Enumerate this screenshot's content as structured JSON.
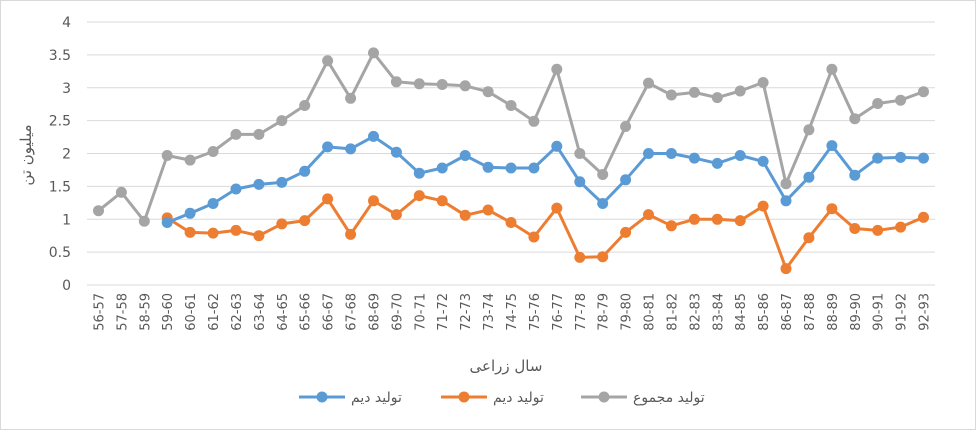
{
  "chart_data": {
    "type": "line",
    "title": "",
    "xlabel": "سال زراعی",
    "ylabel": "میلیون تن",
    "ylim": [
      0,
      4
    ],
    "yticks": [
      "0",
      "0.5",
      "1",
      "1.5",
      "2",
      "2.5",
      "3",
      "3.5",
      "4"
    ],
    "grid": true,
    "legend_position": "bottom",
    "categories": [
      "56-57",
      "57-58",
      "58-59",
      "59-60",
      "60-61",
      "61-62",
      "62-63",
      "63-64",
      "64-65",
      "65-66",
      "66-67",
      "67-68",
      "68-69",
      "69-70",
      "70-71",
      "71-72",
      "72-73",
      "73-74",
      "74-75",
      "75-76",
      "76-77",
      "77-78",
      "78-79",
      "79-80",
      "80-81",
      "81-82",
      "82-83",
      "83-84",
      "84-85",
      "85-86",
      "86-87",
      "87-88",
      "88-89",
      "89-90",
      "90-91",
      "91-92",
      "92-93"
    ],
    "series": [
      {
        "name": "تولید دیم",
        "color": "#5b9bd5",
        "values": [
          null,
          null,
          null,
          0.95,
          1.09,
          1.24,
          1.46,
          1.53,
          1.56,
          1.73,
          2.1,
          2.07,
          2.26,
          2.02,
          1.7,
          1.78,
          1.97,
          1.79,
          1.78,
          1.78,
          2.11,
          1.57,
          1.24,
          1.6,
          2.0,
          2.0,
          1.93,
          1.85,
          1.97,
          1.88,
          1.28,
          1.64,
          2.12,
          1.67,
          1.93,
          1.94,
          1.93
        ]
      },
      {
        "name": "تولید دیم",
        "color": "#ed7d31",
        "values": [
          null,
          null,
          null,
          1.02,
          0.8,
          0.79,
          0.83,
          0.75,
          0.93,
          0.98,
          1.31,
          0.77,
          1.28,
          1.07,
          1.36,
          1.28,
          1.06,
          1.14,
          0.95,
          0.73,
          1.17,
          0.42,
          0.43,
          0.8,
          1.07,
          0.9,
          1.0,
          1.0,
          0.98,
          1.2,
          0.25,
          0.72,
          1.16,
          0.86,
          0.83,
          0.88,
          1.03
        ]
      },
      {
        "name": "تولید مجموع",
        "color": "#a5a5a5",
        "values": [
          1.13,
          1.41,
          0.97,
          1.97,
          1.9,
          2.03,
          2.29,
          2.29,
          2.5,
          2.73,
          3.41,
          2.84,
          3.53,
          3.09,
          3.06,
          3.05,
          3.03,
          2.94,
          2.73,
          2.49,
          3.28,
          2.0,
          1.68,
          2.41,
          3.07,
          2.89,
          2.93,
          2.85,
          2.95,
          3.08,
          1.54,
          2.36,
          3.28,
          2.53,
          2.76,
          2.81,
          2.94
        ]
      }
    ]
  }
}
